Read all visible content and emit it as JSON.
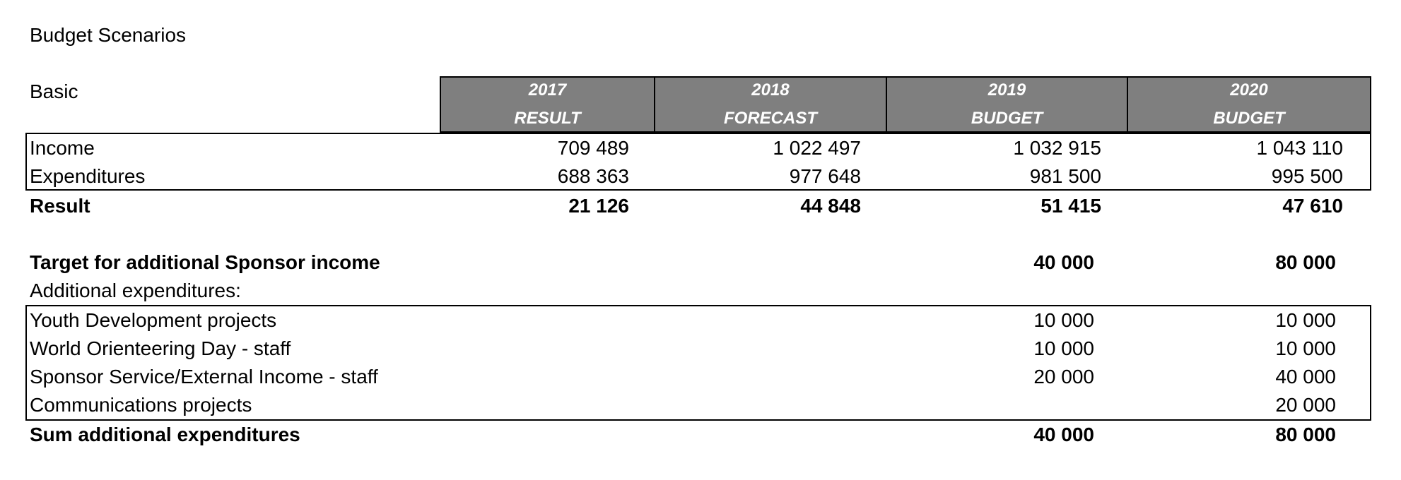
{
  "title": "Budget Scenarios",
  "section_label": "Basic",
  "columns": [
    {
      "year": "2017",
      "kind": "RESULT"
    },
    {
      "year": "2018",
      "kind": "FORECAST"
    },
    {
      "year": "2019",
      "kind": "BUDGET"
    },
    {
      "year": "2020",
      "kind": "BUDGET"
    }
  ],
  "basic_rows": [
    {
      "label": "Income",
      "values": [
        "709 489",
        "1 022 497",
        "1 032 915",
        "1 043 110"
      ]
    },
    {
      "label": "Expenditures",
      "values": [
        "688 363",
        "977 648",
        "981 500",
        "995 500"
      ]
    }
  ],
  "result_row": {
    "label": "Result",
    "values": [
      "21 126",
      "44 848",
      "51 415",
      "47 610"
    ]
  },
  "target_row": {
    "label": "Target for additional Sponsor income",
    "values": [
      "40 000",
      "80 000"
    ]
  },
  "additional_label": "Additional expenditures:",
  "additional_rows": [
    {
      "label": "Youth Development projects",
      "values": [
        "10 000",
        "10 000"
      ]
    },
    {
      "label": "World Orienteering Day - staff",
      "values": [
        "10 000",
        "10 000"
      ]
    },
    {
      "label": "Sponsor Service/External Income - staff",
      "values": [
        "20 000",
        "40 000"
      ]
    },
    {
      "label": "Communications projects",
      "values": [
        "",
        "20 000"
      ]
    }
  ],
  "sum_row": {
    "label": "Sum additional expenditures",
    "values": [
      "40 000",
      "80 000"
    ]
  },
  "colors": {
    "header_bg": "#7f7f7f",
    "header_text": "#ffffff",
    "border": "#000000"
  }
}
